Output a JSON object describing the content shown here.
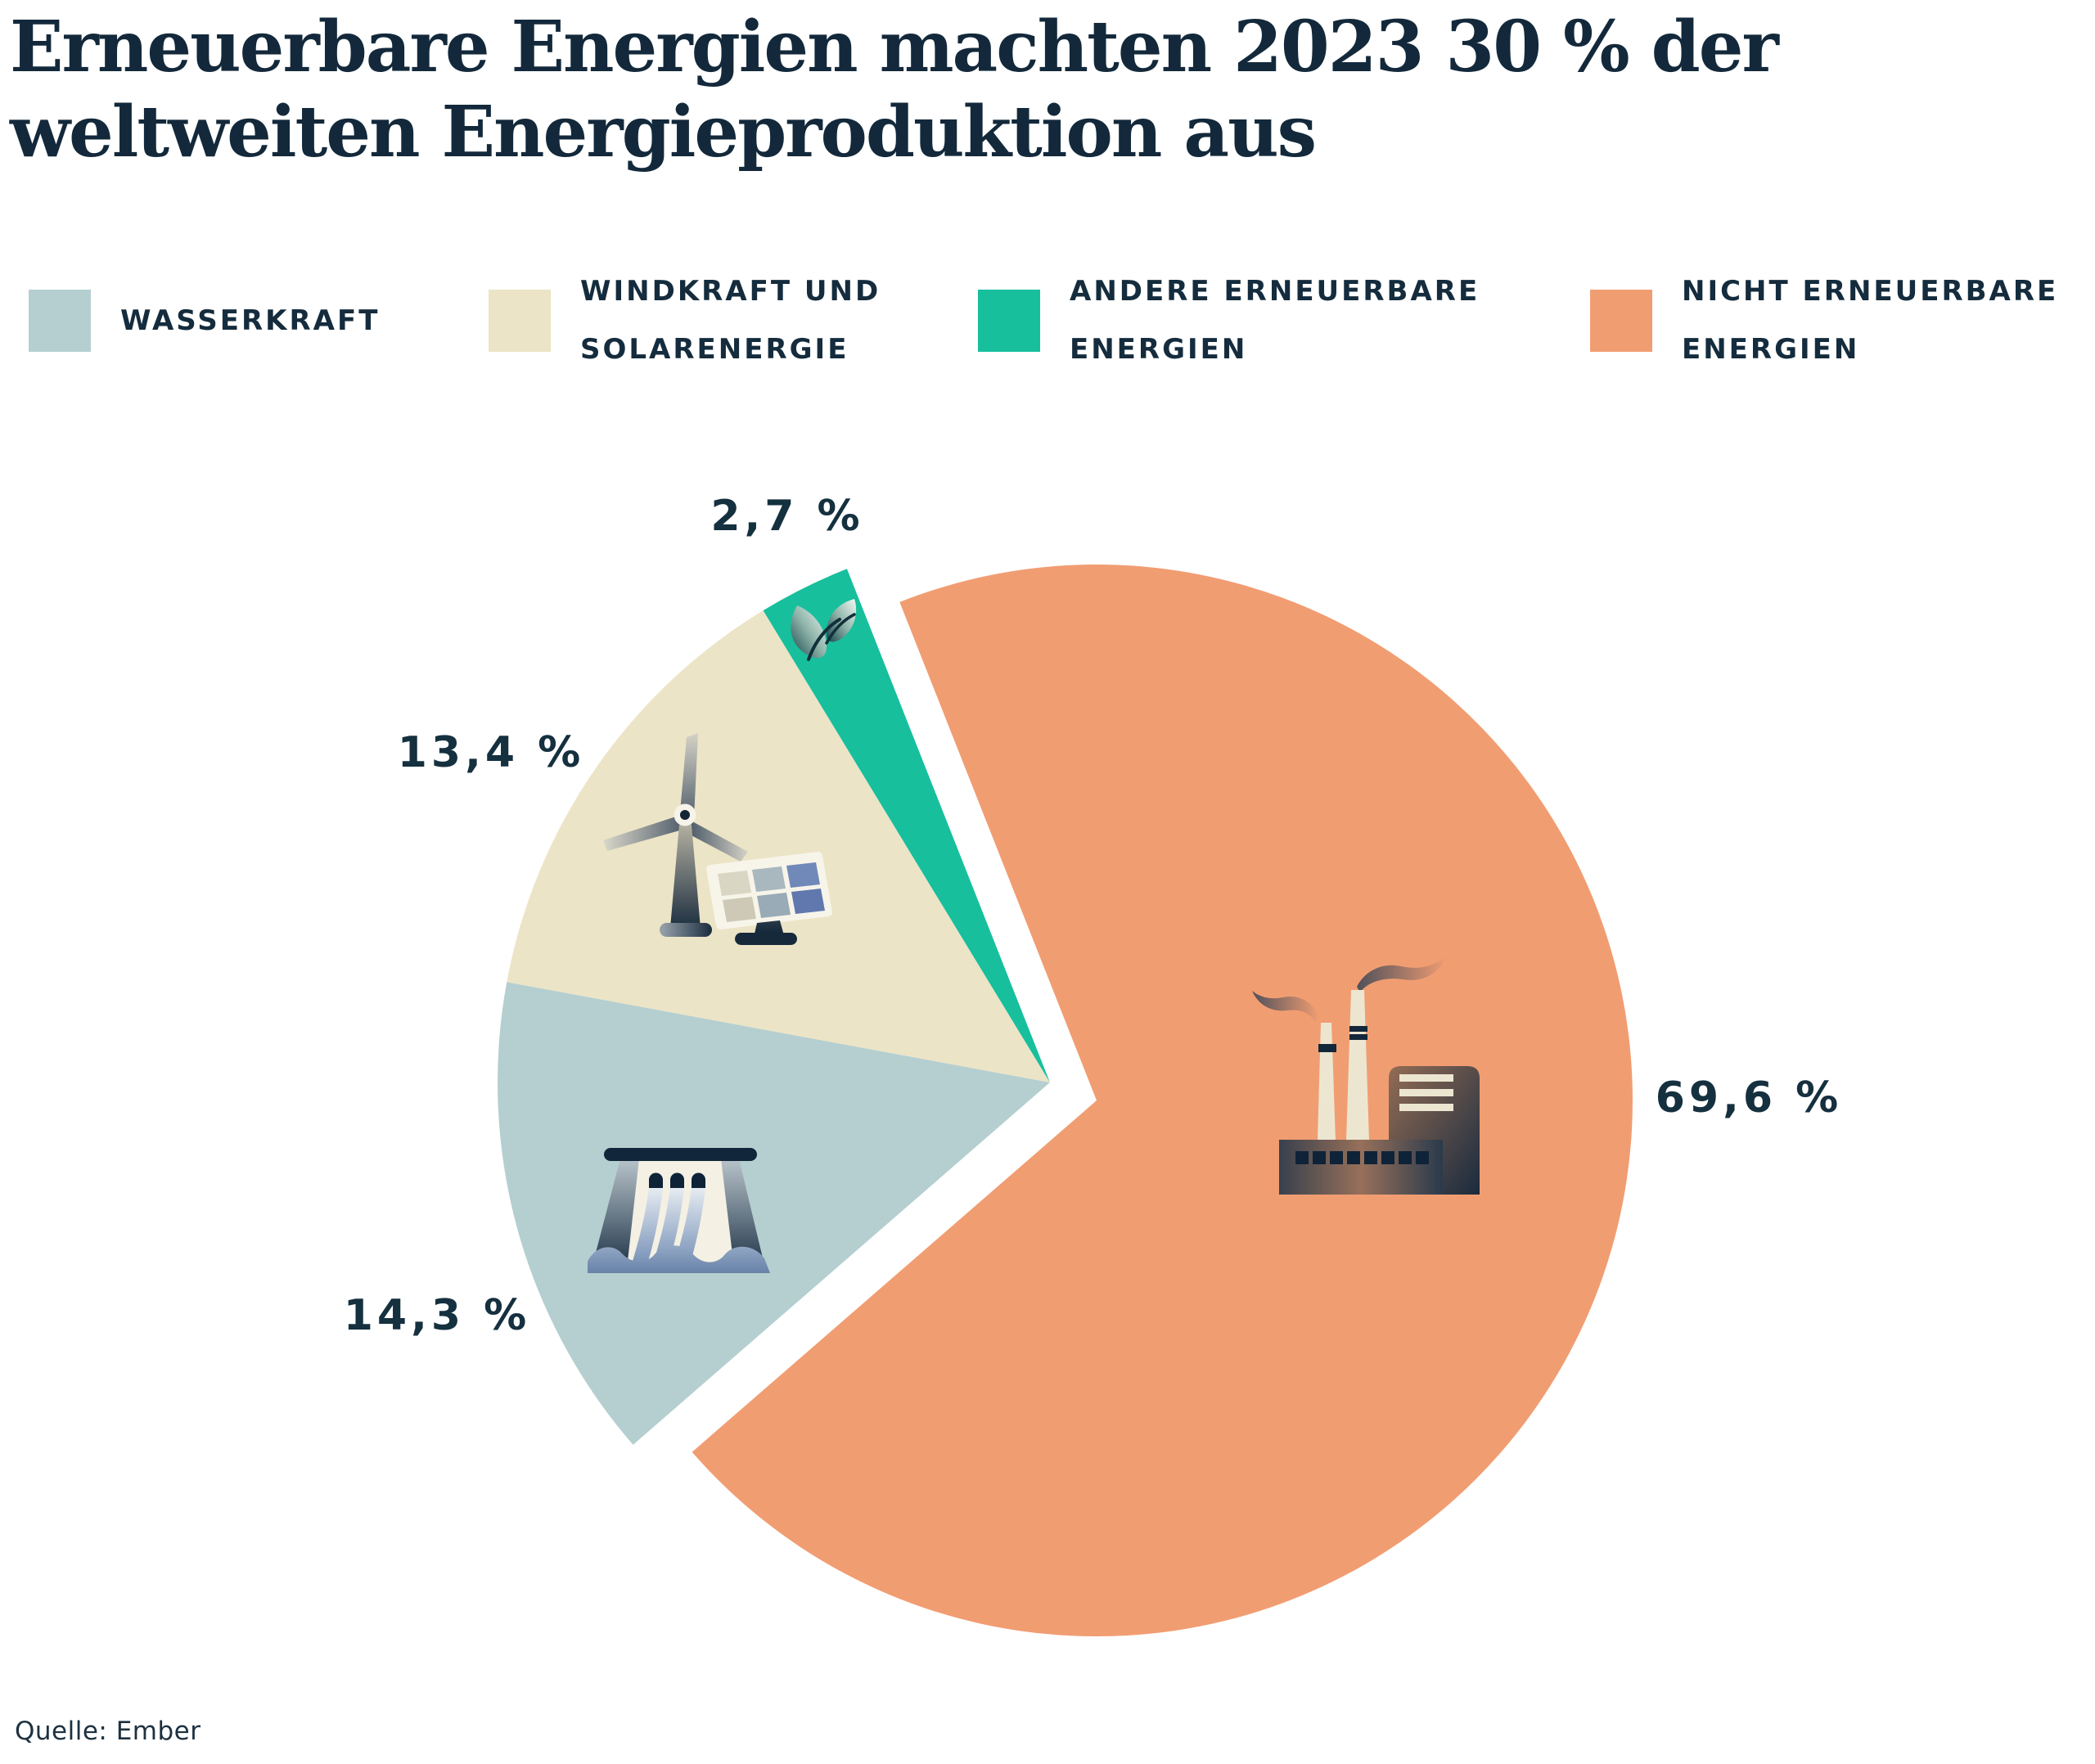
{
  "title": {
    "line1": "Erneuerbare Energien machten 2023 30 % der",
    "line2": "weltweiten Energieproduktion aus"
  },
  "source": "Quelle: Ember",
  "colors": {
    "text_navy": "#142c3d",
    "background": "#ffffff",
    "wasserkraft": "#b5cfd0",
    "windkraft_solar": "#ece4c6",
    "andere_erneuerbare": "#17bf9d",
    "nicht_erneuerbare": "#f19d72"
  },
  "legend": {
    "items": [
      {
        "line1": "WASSERKRAFT",
        "line2": ""
      },
      {
        "line1": "WINDKRAFT UND",
        "line2": "SOLARENERGIE"
      },
      {
        "line1": "ANDERE ERNEUERBARE",
        "line2": "ENERGIEN"
      },
      {
        "line1": "NICHT ERNEUERBARE",
        "line2": "ENERGIEN"
      }
    ]
  },
  "chart_data": {
    "type": "pie",
    "title": "Erneuerbare Energien machten 2023 30 % der weltweiten Energieproduktion aus",
    "unit": "%",
    "series": [
      {
        "id": "wasserkraft",
        "name": "Wasserkraft",
        "value": 14.3,
        "label": "14,3 %",
        "color": "#b5cfd0",
        "icon": "dam-icon",
        "exploded": false
      },
      {
        "id": "windkraft-solar",
        "name": "Windkraft und Solarenergie",
        "value": 13.4,
        "label": "13,4 %",
        "color": "#ece4c6",
        "icon": "wind-turbine-solar-panel-icon",
        "exploded": false
      },
      {
        "id": "andere-erneuerbare",
        "name": "Andere erneuerbare Energien",
        "value": 2.7,
        "label": "2,7 %",
        "color": "#17bf9d",
        "icon": "leaf-icon",
        "exploded": false
      },
      {
        "id": "nicht-erneuerbare",
        "name": "Nicht erneuerbare Energien",
        "value": 69.6,
        "label": "69,6 %",
        "color": "#f19d72",
        "icon": "factory-icon",
        "exploded": true
      }
    ],
    "layout": {
      "start_angle_deg": 229,
      "main_center": [
        1283,
        1323
      ],
      "main_radius": 675,
      "exploded_center": [
        1340,
        1345
      ],
      "exploded_radius": 655,
      "legend_position": "top",
      "labels": "outside"
    }
  }
}
